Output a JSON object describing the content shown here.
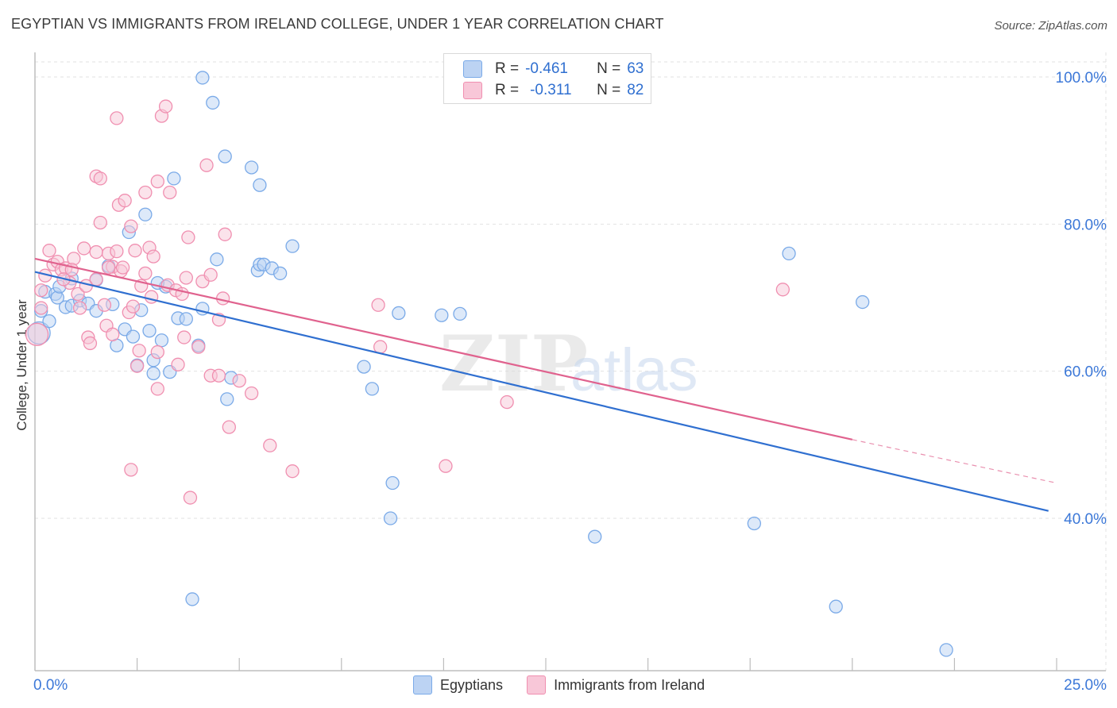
{
  "chart_data": {
    "type": "scatter",
    "title": "EGYPTIAN VS IMMIGRANTS FROM IRELAND COLLEGE, UNDER 1 YEAR CORRELATION CHART",
    "source": "Source: ZipAtlas.com",
    "xlabel": "",
    "ylabel": "College, Under 1 year",
    "xlim": [
      0,
      25
    ],
    "ylim": [
      20,
      102
    ],
    "x_tick_labels": {
      "left": "0.0%",
      "right": "25.0%"
    },
    "y_ticks": [
      {
        "value": 40,
        "label": "40.0%"
      },
      {
        "value": 60,
        "label": "60.0%"
      },
      {
        "value": 80,
        "label": "80.0%"
      },
      {
        "value": 100,
        "label": "100.0%"
      }
    ],
    "watermark": {
      "zip": "ZIP",
      "atlas": "atlas"
    },
    "series": [
      {
        "name": "Egyptians",
        "color": "#7aaae8",
        "fill": "#bcd3f3",
        "line_color": "#2f6fd0",
        "r_label": "R =",
        "r_value": "-0.461",
        "n_label": "N =",
        "n_value": "63",
        "trend": {
          "x0": 0,
          "y0": 73.5,
          "x1": 24.8,
          "y1": 41.0
        },
        "points": [
          [
            0.1,
            65.2
          ],
          [
            0.15,
            68.2
          ],
          [
            0.35,
            66.8
          ],
          [
            0.25,
            70.8
          ],
          [
            0.5,
            70.5
          ],
          [
            0.55,
            70.0
          ],
          [
            0.75,
            68.7
          ],
          [
            0.9,
            68.9
          ],
          [
            1.1,
            69.6
          ],
          [
            1.3,
            69.2
          ],
          [
            1.5,
            68.2
          ],
          [
            1.5,
            72.4
          ],
          [
            0.6,
            71.5
          ],
          [
            0.9,
            72.6
          ],
          [
            1.8,
            74.3
          ],
          [
            1.9,
            69.1
          ],
          [
            2.0,
            63.5
          ],
          [
            2.2,
            65.7
          ],
          [
            2.4,
            64.7
          ],
          [
            2.5,
            60.8
          ],
          [
            2.6,
            68.3
          ],
          [
            2.7,
            81.3
          ],
          [
            2.8,
            65.5
          ],
          [
            2.9,
            59.7
          ],
          [
            3.1,
            64.2
          ],
          [
            3.2,
            71.5
          ],
          [
            3.3,
            59.9
          ],
          [
            3.4,
            86.2
          ],
          [
            3.5,
            67.2
          ],
          [
            3.7,
            67.1
          ],
          [
            2.3,
            78.9
          ],
          [
            4.1,
            99.9
          ],
          [
            4.35,
            96.5
          ],
          [
            4.45,
            75.2
          ],
          [
            4.65,
            89.2
          ],
          [
            5.3,
            87.7
          ],
          [
            5.45,
            73.7
          ],
          [
            5.5,
            74.5
          ],
          [
            5.6,
            74.5
          ],
          [
            5.8,
            74.0
          ],
          [
            6.0,
            73.3
          ],
          [
            6.3,
            77.0
          ],
          [
            4.0,
            63.5
          ],
          [
            4.8,
            59.1
          ],
          [
            4.7,
            56.2
          ],
          [
            3.85,
            29.0
          ],
          [
            5.5,
            85.3
          ],
          [
            8.05,
            60.6
          ],
          [
            8.25,
            57.6
          ],
          [
            8.9,
            67.9
          ],
          [
            9.95,
            67.6
          ],
          [
            10.4,
            67.8
          ],
          [
            8.75,
            44.8
          ],
          [
            8.7,
            40.0
          ],
          [
            13.7,
            37.5
          ],
          [
            17.6,
            39.3
          ],
          [
            18.45,
            76.0
          ],
          [
            19.6,
            28.0
          ],
          [
            20.25,
            69.4
          ],
          [
            22.3,
            22.1
          ],
          [
            4.1,
            68.5
          ],
          [
            3.0,
            72.0
          ],
          [
            2.9,
            61.5
          ]
        ]
      },
      {
        "name": "Immigrants from Ireland",
        "color": "#f08fb0",
        "fill": "#f8c7d8",
        "line_color": "#e0628e",
        "r_label": "R =",
        "r_value": "-0.311",
        "n_label": "N =",
        "n_value": "82",
        "trend": {
          "x0": 0,
          "y0": 75.3,
          "x1": 20.0,
          "y1": 50.7,
          "dash_x1": 25.0,
          "dash_y1": 44.8
        },
        "points": [
          [
            0.05,
            65.0
          ],
          [
            0.15,
            68.6
          ],
          [
            0.15,
            71.0
          ],
          [
            0.25,
            73.0
          ],
          [
            0.35,
            76.4
          ],
          [
            0.45,
            74.5
          ],
          [
            0.55,
            74.9
          ],
          [
            0.65,
            73.8
          ],
          [
            0.75,
            74.0
          ],
          [
            0.85,
            72.0
          ],
          [
            0.95,
            75.3
          ],
          [
            1.05,
            70.5
          ],
          [
            1.1,
            68.6
          ],
          [
            1.2,
            76.7
          ],
          [
            1.3,
            64.6
          ],
          [
            1.35,
            63.8
          ],
          [
            1.5,
            86.5
          ],
          [
            1.5,
            72.5
          ],
          [
            1.5,
            76.2
          ],
          [
            1.6,
            86.2
          ],
          [
            1.6,
            80.2
          ],
          [
            1.7,
            69.0
          ],
          [
            1.75,
            66.2
          ],
          [
            1.8,
            76.0
          ],
          [
            1.9,
            74.2
          ],
          [
            2.0,
            76.3
          ],
          [
            2.0,
            94.4
          ],
          [
            2.05,
            82.6
          ],
          [
            2.1,
            73.6
          ],
          [
            2.15,
            74.1
          ],
          [
            2.2,
            83.2
          ],
          [
            2.3,
            68.0
          ],
          [
            2.35,
            79.7
          ],
          [
            2.45,
            76.4
          ],
          [
            2.5,
            60.7
          ],
          [
            2.55,
            62.8
          ],
          [
            2.6,
            71.6
          ],
          [
            2.7,
            73.3
          ],
          [
            2.7,
            84.3
          ],
          [
            2.8,
            76.8
          ],
          [
            2.85,
            70.1
          ],
          [
            2.9,
            75.6
          ],
          [
            3.0,
            85.8
          ],
          [
            3.0,
            62.6
          ],
          [
            3.1,
            94.7
          ],
          [
            3.2,
            96.0
          ],
          [
            3.25,
            71.7
          ],
          [
            3.3,
            84.3
          ],
          [
            3.45,
            71.0
          ],
          [
            3.6,
            70.5
          ],
          [
            3.65,
            64.6
          ],
          [
            3.7,
            72.7
          ],
          [
            3.75,
            78.2
          ],
          [
            3.8,
            42.8
          ],
          [
            4.0,
            63.3
          ],
          [
            4.1,
            72.2
          ],
          [
            4.2,
            88.0
          ],
          [
            4.3,
            59.4
          ],
          [
            4.5,
            59.4
          ],
          [
            4.6,
            69.9
          ],
          [
            4.65,
            78.6
          ],
          [
            4.75,
            52.4
          ],
          [
            5.0,
            58.7
          ],
          [
            5.3,
            57.0
          ],
          [
            5.75,
            49.9
          ],
          [
            6.3,
            46.4
          ],
          [
            2.35,
            46.6
          ],
          [
            8.4,
            69.0
          ],
          [
            8.45,
            63.3
          ],
          [
            4.3,
            73.1
          ],
          [
            10.05,
            47.1
          ],
          [
            11.55,
            55.8
          ],
          [
            18.3,
            71.1
          ],
          [
            3.0,
            57.6
          ],
          [
            1.25,
            71.6
          ],
          [
            0.9,
            73.8
          ],
          [
            1.8,
            74.1
          ],
          [
            2.4,
            68.8
          ],
          [
            0.7,
            72.5
          ],
          [
            3.5,
            60.9
          ],
          [
            4.5,
            67.0
          ],
          [
            1.9,
            65.0
          ]
        ]
      }
    ]
  }
}
